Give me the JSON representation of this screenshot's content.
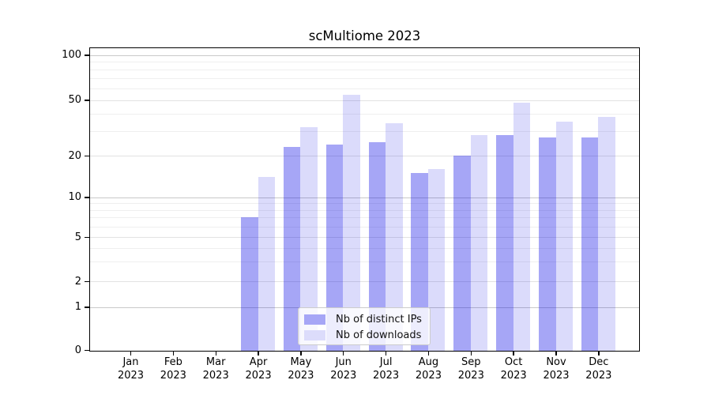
{
  "title": "scMultiome 2023",
  "legend": {
    "items": [
      {
        "label": "Nb of distinct IPs"
      },
      {
        "label": "Nb of downloads"
      }
    ]
  },
  "colors": {
    "bar_distinct_ips": "#a6a6f6",
    "bar_downloads": "#dcdcfb",
    "axis": "#000000",
    "gridline_major": "#c9c9c9",
    "gridline_labeled": "#e2e2e2",
    "gridline_minor": "#efefef"
  },
  "chart_data": {
    "type": "bar",
    "title": "scMultiome 2023",
    "categories": [
      "Jan 2023",
      "Feb 2023",
      "Mar 2023",
      "Apr 2023",
      "May 2023",
      "Jun 2023",
      "Jul 2023",
      "Aug 2023",
      "Sep 2023",
      "Oct 2023",
      "Nov 2023",
      "Dec 2023"
    ],
    "series": [
      {
        "name": "Nb of distinct IPs",
        "values": [
          0,
          0,
          0,
          7,
          23,
          24,
          25,
          15,
          20,
          28,
          27,
          27
        ],
        "color": "#a6a6f6",
        "fill": "rgba(0,0,230,0.35)"
      },
      {
        "name": "Nb of downloads",
        "values": [
          0,
          0,
          0,
          14,
          32,
          54,
          34,
          16,
          28,
          48,
          35,
          38
        ],
        "color": "#dcdcfb",
        "fill": "rgba(0,0,230,0.14)"
      }
    ],
    "xlabel": "",
    "ylabel": "",
    "yscale": "symlog",
    "y_ticks": [
      0,
      1,
      2,
      5,
      10,
      20,
      50,
      100
    ],
    "y_minor_gridlines": [
      3,
      4,
      6,
      7,
      8,
      9,
      30,
      40,
      60,
      70,
      80,
      90
    ],
    "ylim": [
      0,
      113
    ],
    "grid": true,
    "legend_position": "lower center"
  }
}
